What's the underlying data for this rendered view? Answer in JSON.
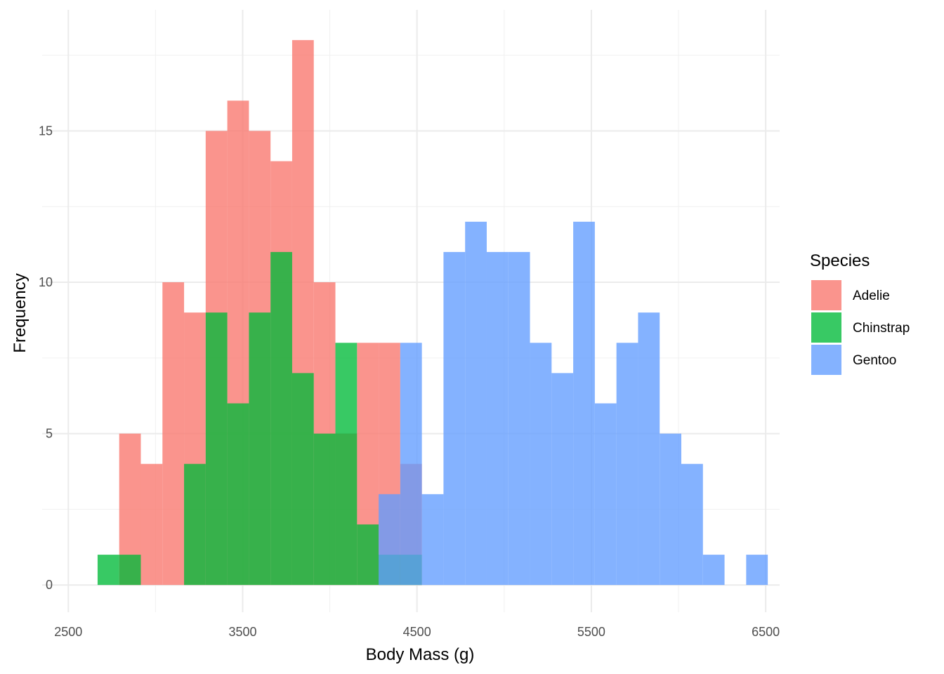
{
  "chart_data": {
    "type": "bar",
    "subtype": "overlaid-histogram",
    "xlabel": "Body Mass (g)",
    "ylabel": "Frequency",
    "xlim": [
      2350,
      6580
    ],
    "ylim": [
      -0.9,
      19
    ],
    "xticks": [
      2500,
      3500,
      4500,
      5500,
      6500
    ],
    "yticks": [
      0,
      5,
      10,
      15
    ],
    "bin_width": 124,
    "bin_start": 2668,
    "grid": true,
    "legend": {
      "title": "Species",
      "placement": "right"
    },
    "series": [
      {
        "name": "Adelie",
        "color": "#F8766D",
        "bin_counts": [
          0,
          5,
          4,
          10,
          9,
          15,
          16,
          15,
          14,
          18,
          10,
          5,
          8,
          8,
          4
        ]
      },
      {
        "name": "Chinstrap",
        "color": "#00BA38",
        "bin_counts": [
          1,
          1,
          0,
          0,
          4,
          9,
          6,
          9,
          11,
          7,
          5,
          8,
          2,
          1,
          1,
          0,
          0
        ]
      },
      {
        "name": "Gentoo",
        "color": "#619CFF",
        "bin_counts": [
          0,
          0,
          0,
          0,
          0,
          0,
          0,
          0,
          0,
          0,
          0,
          0,
          0,
          3,
          8,
          3,
          11,
          12,
          11,
          11,
          8,
          7,
          12,
          6,
          8,
          9,
          5,
          4,
          1,
          0,
          1
        ]
      }
    ]
  }
}
